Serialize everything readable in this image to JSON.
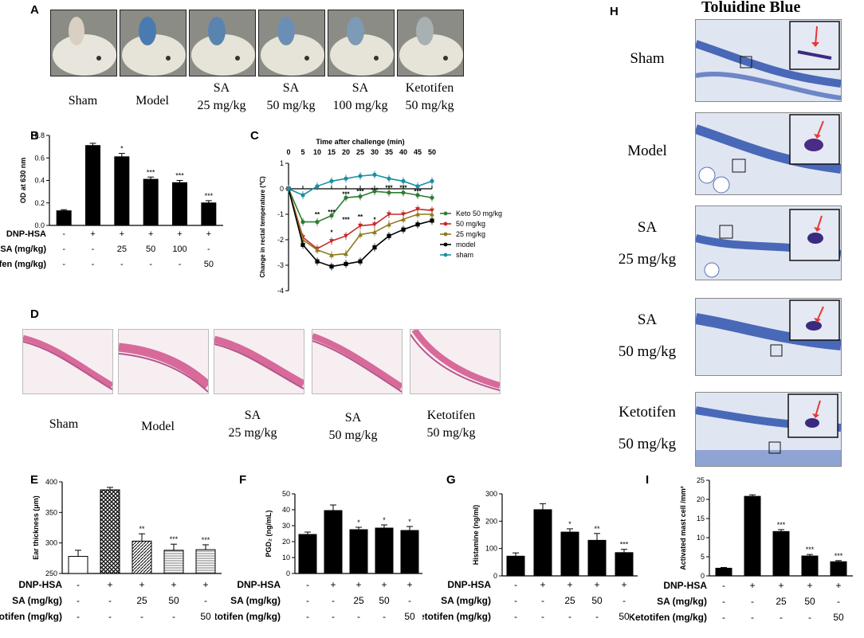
{
  "panels": {
    "A": "A",
    "B": "B",
    "C": "C",
    "D": "D",
    "E": "E",
    "F": "F",
    "G": "G",
    "H": "H",
    "I": "I"
  },
  "panelA": {
    "captions": [
      {
        "l1": "Sham",
        "l2": ""
      },
      {
        "l1": "Model",
        "l2": ""
      },
      {
        "l1": "SA",
        "l2": "25 mg/kg"
      },
      {
        "l1": "SA",
        "l2": "50 mg/kg"
      },
      {
        "l1": "SA",
        "l2": "100 mg/kg"
      },
      {
        "l1": "Ketotifen",
        "l2": "50 mg/kg"
      }
    ]
  },
  "panelD": {
    "captions": [
      {
        "l1": "Sham",
        "l2": ""
      },
      {
        "l1": "Model",
        "l2": ""
      },
      {
        "l1": "SA",
        "l2": "25 mg/kg"
      },
      {
        "l1": "SA",
        "l2": "50 mg/kg"
      },
      {
        "l1": "Ketotifen",
        "l2": "50 mg/kg"
      }
    ]
  },
  "panelH": {
    "title": "Toluidine Blue",
    "captions": [
      {
        "l1": "Sham",
        "l2": ""
      },
      {
        "l1": "Model",
        "l2": ""
      },
      {
        "l1": "SA",
        "l2": "25 mg/kg"
      },
      {
        "l1": "SA",
        "l2": "50 mg/kg"
      },
      {
        "l1": "Ketotifen",
        "l2": "50 mg/kg"
      }
    ]
  },
  "colors": {
    "bar": "#000000",
    "keto": "#2e7d32",
    "sa50": "#c62828",
    "sa25": "#8d7a1a",
    "model": "#000000",
    "sham": "#1b8fa3"
  },
  "chart_data": [
    {
      "id": "B",
      "type": "bar",
      "ylabel": "OD at 630 nm",
      "ylim": [
        0,
        0.8
      ],
      "yticks": [
        "0.0",
        "0.2",
        "0.4",
        "0.6",
        "0.8"
      ],
      "values": [
        0.13,
        0.71,
        0.61,
        0.41,
        0.38,
        0.2
      ],
      "errors": [
        0.01,
        0.02,
        0.03,
        0.02,
        0.02,
        0.02
      ],
      "sig": [
        "",
        "",
        "*",
        "***",
        "***",
        "***"
      ],
      "rows": [
        {
          "label": "DNP-HSA",
          "cells": [
            "-",
            "+",
            "+",
            "+",
            "+",
            "+"
          ]
        },
        {
          "label": "SA (mg/kg)",
          "cells": [
            "-",
            "-",
            "25",
            "50",
            "100",
            "-"
          ]
        },
        {
          "label": "Ketotifen (mg/kg)",
          "cells": [
            "-",
            "-",
            "-",
            "-",
            "-",
            "50"
          ]
        }
      ]
    },
    {
      "id": "C",
      "type": "line",
      "title": "Time after challenge (min)",
      "ylabel": "Change in rectal temperature (℃)",
      "x": [
        0,
        5,
        10,
        15,
        20,
        25,
        30,
        35,
        40,
        45,
        50
      ],
      "xticks": [
        "0",
        "5",
        "10",
        "15",
        "20",
        "25",
        "30",
        "35",
        "40",
        "45",
        "50"
      ],
      "ylim": [
        -4,
        1
      ],
      "yticks": [
        "1",
        "0",
        "-1",
        "-2",
        "-3",
        "-4"
      ],
      "series": [
        {
          "name": "Keto 50 mg/kg",
          "values": [
            0,
            -1.3,
            -1.3,
            -1.05,
            -0.35,
            -0.3,
            -0.1,
            -0.15,
            -0.15,
            -0.25,
            -0.35
          ]
        },
        {
          "name": "50 mg/kg",
          "values": [
            0,
            -1.9,
            -2.35,
            -2.05,
            -1.85,
            -1.45,
            -1.4,
            -1.0,
            -1.0,
            -0.8,
            -0.85
          ]
        },
        {
          "name": "25 mg/kg",
          "values": [
            0,
            -2.0,
            -2.4,
            -2.6,
            -2.55,
            -1.8,
            -1.7,
            -1.4,
            -1.2,
            -1.0,
            -1.0
          ]
        },
        {
          "name": "model",
          "values": [
            0,
            -2.2,
            -2.85,
            -3.05,
            -2.95,
            -2.85,
            -2.3,
            -1.85,
            -1.6,
            -1.4,
            -1.25
          ]
        },
        {
          "name": "sham",
          "values": [
            0,
            -0.25,
            0.1,
            0.3,
            0.4,
            0.5,
            0.55,
            0.4,
            0.3,
            0.1,
            0.3
          ]
        }
      ],
      "annotations": [
        "**",
        "***",
        "*",
        "***",
        "***",
        "***",
        "**",
        "*",
        "***",
        "***",
        "***",
        "***"
      ]
    },
    {
      "id": "E",
      "type": "bar",
      "ylabel": "Ear thickness (μm)",
      "ylim": [
        250,
        400
      ],
      "yticks": [
        "250",
        "300",
        "350",
        "400"
      ],
      "values": [
        278,
        387,
        303,
        288,
        289
      ],
      "errors": [
        10,
        4,
        12,
        10,
        8
      ],
      "sig": [
        "",
        "",
        "**",
        "***",
        "***"
      ],
      "rows": [
        {
          "label": "DNP-HSA",
          "cells": [
            "-",
            "+",
            "+",
            "+",
            "+"
          ]
        },
        {
          "label": "SA (mg/kg)",
          "cells": [
            "-",
            "-",
            "25",
            "50",
            "-"
          ]
        },
        {
          "label": "Ketotifen (mg/kg)",
          "cells": [
            "-",
            "-",
            "-",
            "-",
            "50"
          ]
        }
      ]
    },
    {
      "id": "F",
      "type": "bar",
      "ylabel": "PGD₂ (ng/mL)",
      "ylim": [
        0,
        50
      ],
      "yticks": [
        "0",
        "10",
        "20",
        "30",
        "40",
        "50"
      ],
      "values": [
        24.5,
        39.5,
        27.5,
        28.5,
        27
      ],
      "errors": [
        1.5,
        3.5,
        1.5,
        2,
        2.5
      ],
      "sig": [
        "",
        "",
        "*",
        "*",
        "*"
      ],
      "rows": [
        {
          "label": "DNP-HSA",
          "cells": [
            "-",
            "+",
            "+",
            "+",
            "+"
          ]
        },
        {
          "label": "SA (mg/kg)",
          "cells": [
            "-",
            "-",
            "25",
            "50",
            "-"
          ]
        },
        {
          "label": "Ketotifen (mg/kg)",
          "cells": [
            "-",
            "-",
            "-",
            "-",
            "50"
          ]
        }
      ]
    },
    {
      "id": "G",
      "type": "bar",
      "ylabel": "Histamine (ng/ml)",
      "ylim": [
        0,
        300
      ],
      "yticks": [
        "0",
        "100",
        "200",
        "300"
      ],
      "values": [
        72,
        242,
        160,
        130,
        85
      ],
      "errors": [
        12,
        22,
        12,
        25,
        12
      ],
      "sig": [
        "",
        "",
        "*",
        "**",
        "***"
      ],
      "rows": [
        {
          "label": "DNP-HSA",
          "cells": [
            "-",
            "+",
            "+",
            "+",
            "+"
          ]
        },
        {
          "label": "SA (mg/kg)",
          "cells": [
            "-",
            "-",
            "25",
            "50",
            "-"
          ]
        },
        {
          "label": "Ketotifen (mg/kg)",
          "cells": [
            "-",
            "-",
            "-",
            "-",
            "50"
          ]
        }
      ]
    },
    {
      "id": "I",
      "type": "bar",
      "ylabel": "Activated mast cell /mm²",
      "ylim": [
        0,
        25
      ],
      "yticks": [
        "0",
        "5",
        "10",
        "15",
        "20",
        "25"
      ],
      "values": [
        2,
        20.8,
        11.6,
        5.2,
        3.7
      ],
      "errors": [
        0.2,
        0.4,
        0.5,
        0.4,
        0.3
      ],
      "sig": [
        "",
        "",
        "***",
        "***",
        "***"
      ],
      "rows": [
        {
          "label": "DNP-HSA",
          "cells": [
            "-",
            "+",
            "+",
            "+",
            "+"
          ]
        },
        {
          "label": "SA (mg/kg)",
          "cells": [
            "-",
            "-",
            "25",
            "50",
            "-"
          ]
        },
        {
          "label": "Ketotifen (mg/kg)",
          "cells": [
            "-",
            "-",
            "-",
            "-",
            "50"
          ]
        }
      ]
    }
  ]
}
